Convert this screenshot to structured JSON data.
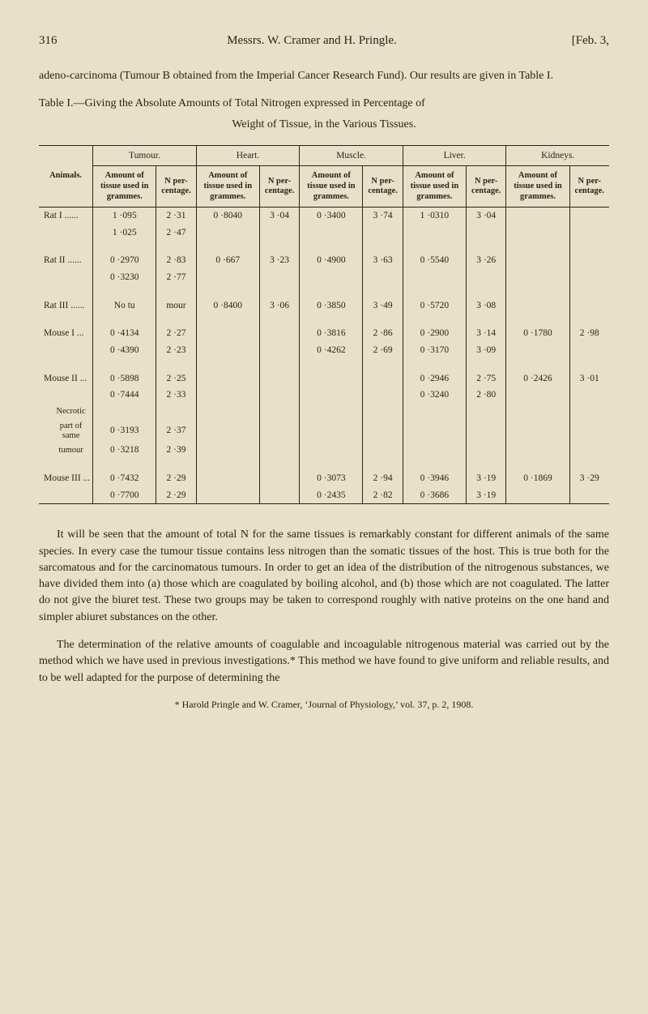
{
  "header": {
    "page_number": "316",
    "running_title": "Messrs. W. Cramer and H. Pringle.",
    "date_bracket": "[Feb. 3,"
  },
  "intro_para": "adeno-carcinoma (Tumour B obtained from the Imperial Cancer Research Fund).  Our results are given in Table I.",
  "table_caption_line1": "Table I.—Giving the Absolute Amounts of Total Nitrogen expressed in Percentage of",
  "table_caption_line2": "Weight of Tissue, in the Various Tissues.",
  "table": {
    "groups": [
      "Tumour.",
      "Heart.",
      "Muscle.",
      "Liver.",
      "Kidneys."
    ],
    "animals_header": "Animals.",
    "sub_amount": "Amount of tissue used in grammes.",
    "sub_n": "N per- centage.",
    "rows": [
      {
        "animal": "Rat   I  ......",
        "cells": [
          "1 ·095",
          "2 ·31",
          "0 ·8040",
          "3 ·04",
          "0 ·3400",
          "3 ·74",
          "1 ·0310",
          "3 ·04",
          "",
          ""
        ]
      },
      {
        "animal": "",
        "cells": [
          "1 ·025",
          "2 ·47",
          "",
          "",
          "",
          "",
          "",
          "",
          "",
          ""
        ]
      },
      {
        "gap": true
      },
      {
        "animal": "Rat  II  ......",
        "cells": [
          "0 ·2970",
          "2 ·83",
          "0 ·667",
          "3 ·23",
          "0 ·4900",
          "3 ·63",
          "0 ·5540",
          "3 ·26",
          "",
          ""
        ]
      },
      {
        "animal": "",
        "cells": [
          "0 ·3230",
          "2 ·77",
          "",
          "",
          "",
          "",
          "",
          "",
          "",
          ""
        ]
      },
      {
        "gap": true
      },
      {
        "animal": "Rat III  ......",
        "cells": [
          "No tu",
          "mour",
          "0 ·8400",
          "3 ·06",
          "0 ·3850",
          "3 ·49",
          "0 ·5720",
          "3 ·08",
          "",
          ""
        ]
      },
      {
        "gap": true
      },
      {
        "animal": "Mouse   I  ...",
        "cells": [
          "0 ·4134",
          "2 ·27",
          "",
          "",
          "0 ·3816",
          "2 ·86",
          "0 ·2900",
          "3 ·14",
          "0 ·1780",
          "2 ·98"
        ]
      },
      {
        "animal": "",
        "cells": [
          "0 ·4390",
          "2 ·23",
          "",
          "",
          "0 ·4262",
          "2 ·69",
          "0 ·3170",
          "3 ·09",
          "",
          ""
        ]
      },
      {
        "gap": true
      },
      {
        "animal": "Mouse  II  ...",
        "cells": [
          "0 ·5898",
          "2 ·25",
          "",
          "",
          "",
          "",
          "0 ·2946",
          "2 ·75",
          "0 ·2426",
          "3 ·01"
        ]
      },
      {
        "animal": "",
        "cells": [
          "0 ·7444",
          "2 ·33",
          "",
          "",
          "",
          "",
          "0 ·3240",
          "2 ·80",
          "",
          ""
        ]
      },
      {
        "animal": "_NECRO_TOP",
        "cells": [
          "",
          "",
          "",
          "",
          "",
          "",
          "",
          "",
          "",
          ""
        ]
      },
      {
        "animal": "_NECRO_MID",
        "cells": [
          "0 ·3193",
          "2 ·37",
          "",
          "",
          "",
          "",
          "",
          "",
          "",
          ""
        ]
      },
      {
        "animal": "_NECRO_BOT",
        "cells": [
          "0 ·3218",
          "2 ·39",
          "",
          "",
          "",
          "",
          "",
          "",
          "",
          ""
        ]
      },
      {
        "gap": true
      },
      {
        "animal": "Mouse III  ...",
        "cells": [
          "0 ·7432",
          "2 ·29",
          "",
          "",
          "0 ·3073",
          "2 ·94",
          "0 ·3946",
          "3 ·19",
          "0 ·1869",
          "3 ·29"
        ]
      },
      {
        "animal": "",
        "cells": [
          "0 ·7700",
          "2 ·29",
          "",
          "",
          "0 ·2435",
          "2 ·82",
          "0 ·3686",
          "3 ·19",
          "",
          ""
        ]
      }
    ],
    "necrotic_lines": [
      "Necrotic",
      "part of",
      "same",
      "tumour"
    ]
  },
  "body_para_1": "It will be seen that the amount of total N for the same tissues is remarkably constant for different animals of the same species.  In every case the tumour tissue contains less nitrogen than the somatic tissues of the host.  This is true both for the sarcomatous and for the carcinomatous tumours.  In order to get an idea of the distribution of the nitrogenous substances, we have divided them into (a) those which are coagulated by boiling alcohol, and (b) those which are not coagulated.  The latter do not give the biuret test.  These two groups may be taken to correspond roughly with native proteins on the one hand and simpler abiuret substances on the other.",
  "body_para_2": "The determination of the relative amounts of coagulable and incoagulable nitrogenous material was carried out by the method which we have used in previous investigations.*  This method we have found to give uniform and reliable results, and to be well adapted for the purpose of determining the",
  "footnote": "* Harold Pringle and W. Cramer, ‘Journal of Physiology,’ vol. 37, p. 2, 1908."
}
